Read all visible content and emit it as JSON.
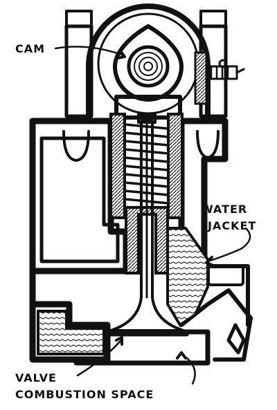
{
  "labels": {
    "cam": "CAM",
    "water_line1": "WATER",
    "water_line2": "JACKET",
    "valve": "VALVE",
    "combustion": "COMBUSTION SPACE"
  },
  "colors": {
    "ink": "#111111",
    "paper": "#ffffff"
  }
}
